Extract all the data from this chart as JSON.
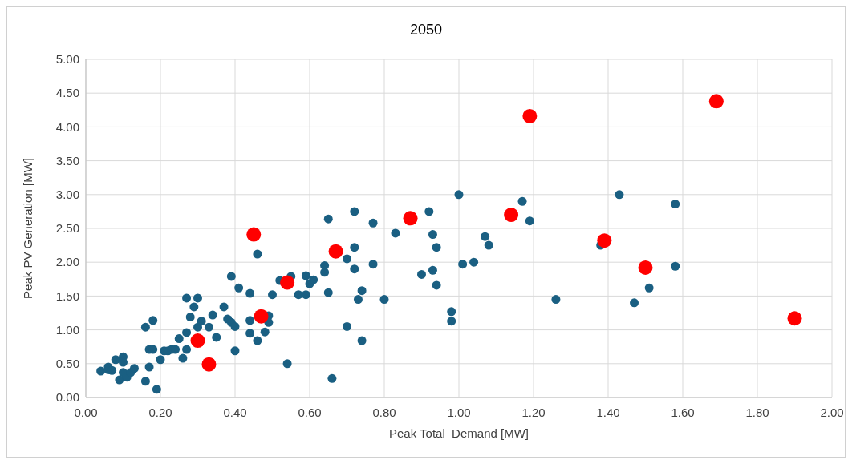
{
  "chart_data": {
    "type": "scatter",
    "title": "2050",
    "xlabel": "Peak Total  Demand [MW]",
    "ylabel": "Peak PV Generation [MW]",
    "xlim": [
      0,
      2
    ],
    "xticks": [
      {
        "value": 0,
        "label": "0.00"
      },
      {
        "value": 0.2,
        "label": "0.20"
      },
      {
        "value": 0.4,
        "label": "0.40"
      },
      {
        "value": 0.6,
        "label": "0.60"
      },
      {
        "value": 0.8,
        "label": "0.80"
      },
      {
        "value": 1,
        "label": "1.00"
      },
      {
        "value": 1.2,
        "label": "1.20"
      },
      {
        "value": 1.4,
        "label": "1.40"
      },
      {
        "value": 1.6,
        "label": "1.60"
      },
      {
        "value": 1.8,
        "label": "1.80"
      },
      {
        "value": 2,
        "label": "2.00"
      }
    ],
    "ylim": [
      0,
      5
    ],
    "yticks": [
      {
        "value": 0,
        "label": "0.00"
      },
      {
        "value": 0.5,
        "label": "0.50"
      },
      {
        "value": 1,
        "label": "1.00"
      },
      {
        "value": 1.5,
        "label": "1.50"
      },
      {
        "value": 2,
        "label": "2.00"
      },
      {
        "value": 2.5,
        "label": "2.50"
      },
      {
        "value": 3,
        "label": "3.00"
      },
      {
        "value": 3.5,
        "label": "3.50"
      },
      {
        "value": 4,
        "label": "4.00"
      },
      {
        "value": 4.5,
        "label": "4.50"
      },
      {
        "value": 5,
        "label": "5.00"
      }
    ],
    "grid": true,
    "marker": "circle",
    "series": [
      {
        "color": "#1a5f82",
        "x": [
          0.04,
          0.06,
          0.06,
          0.07,
          0.08,
          0.09,
          0.1,
          0.1,
          0.1,
          0.11,
          0.12,
          0.13,
          0.16,
          0.16,
          0.17,
          0.17,
          0.18,
          0.18,
          0.19,
          0.2,
          0.21,
          0.22,
          0.23,
          0.24,
          0.25,
          0.26,
          0.27,
          0.27,
          0.27,
          0.28,
          0.29,
          0.3,
          0.3,
          0.31,
          0.33,
          0.34,
          0.35,
          0.37,
          0.38,
          0.39,
          0.4,
          0.4,
          0.39,
          0.41,
          0.44,
          0.44,
          0.44,
          0.46,
          0.46,
          0.48,
          0.49,
          0.49,
          0.5,
          0.52,
          0.54,
          0.55,
          0.57,
          0.59,
          0.59,
          0.6,
          0.61,
          0.64,
          0.64,
          0.65,
          0.65,
          0.66,
          0.7,
          0.7,
          0.72,
          0.72,
          0.72,
          0.73,
          0.74,
          0.74,
          0.77,
          0.77,
          0.8,
          0.83,
          0.9,
          0.92,
          0.93,
          0.93,
          0.94,
          0.94,
          0.98,
          0.98,
          1.0,
          1.01,
          1.04,
          1.07,
          1.08,
          1.17,
          1.19,
          1.26,
          1.38,
          1.43,
          1.47,
          1.51,
          1.58,
          1.58
        ],
        "values": [
          0.39,
          0.41,
          0.45,
          0.4,
          0.56,
          0.26,
          0.52,
          0.6,
          0.37,
          0.3,
          0.37,
          0.43,
          1.04,
          0.24,
          0.45,
          0.71,
          1.14,
          0.71,
          0.12,
          0.56,
          0.69,
          0.69,
          0.71,
          0.71,
          0.87,
          0.58,
          0.96,
          0.71,
          1.47,
          1.19,
          1.34,
          1.47,
          1.04,
          1.13,
          1.04,
          1.22,
          0.89,
          1.34,
          1.16,
          1.11,
          1.05,
          0.69,
          1.79,
          1.62,
          1.54,
          1.14,
          0.95,
          2.12,
          0.84,
          0.97,
          1.21,
          1.11,
          1.52,
          1.73,
          0.5,
          1.79,
          1.52,
          1.8,
          1.52,
          1.68,
          1.74,
          1.95,
          1.85,
          2.64,
          1.55,
          0.28,
          1.05,
          2.05,
          2.75,
          2.22,
          1.9,
          1.45,
          0.84,
          1.58,
          2.58,
          1.97,
          1.45,
          2.43,
          1.82,
          2.75,
          2.41,
          1.88,
          2.22,
          1.66,
          1.27,
          1.13,
          3.0,
          1.97,
          2.0,
          2.38,
          2.25,
          2.9,
          2.61,
          1.45,
          2.25,
          3.0,
          1.4,
          1.62,
          2.86,
          1.94
        ]
      },
      {
        "color": "#ff0000",
        "x": [
          0.3,
          0.33,
          0.45,
          0.47,
          0.54,
          0.67,
          0.87,
          1.14,
          1.19,
          1.39,
          1.5,
          1.69,
          1.9
        ],
        "values": [
          0.84,
          0.49,
          2.41,
          1.2,
          1.7,
          2.16,
          2.65,
          2.7,
          4.16,
          2.32,
          1.92,
          4.38,
          1.17
        ]
      }
    ]
  }
}
